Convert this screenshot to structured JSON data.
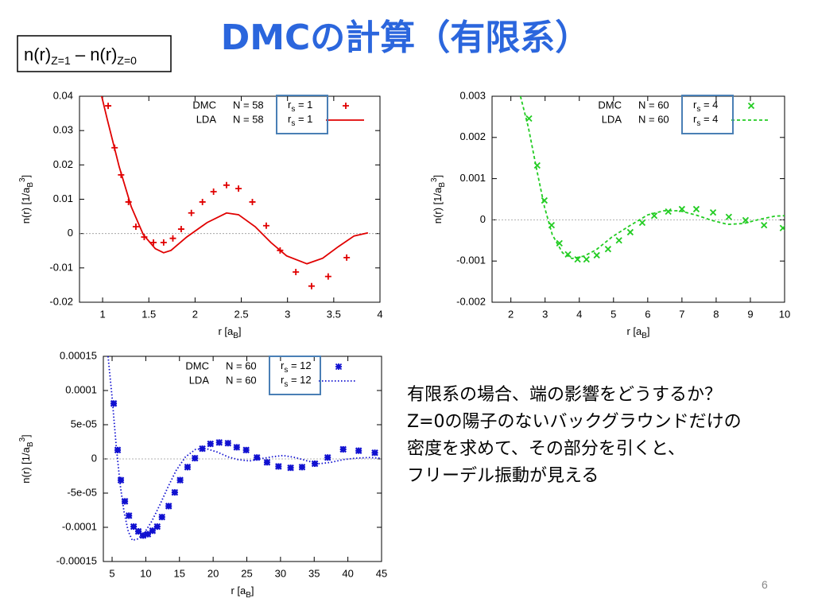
{
  "slide": {
    "title": "DMCの計算（有限系）",
    "box_label": {
      "a": "n(r)",
      "a_sub": "Z=1",
      "mid": " – n(r)",
      "b_sub": "Z=0"
    },
    "paragraph": [
      "有限系の場合、端の影響をどうするか？",
      "Z=0の陽子のないバックグラウンドだけの",
      "密度を求めて、その部分を引くと、",
      "フリーデル振動が見える"
    ],
    "page_number": "6"
  },
  "chart_data": [
    {
      "type": "scatter_line",
      "xlabel": {
        "text": "r  [a",
        "sub": "B",
        "end": "]"
      },
      "ylabel": {
        "text": "n(r)  [1/a",
        "sub": "B",
        "sup": "3",
        "end": "]"
      },
      "legend_symbol": {
        "base": "r",
        "sub": "s"
      },
      "xlim": [
        0.75,
        4
      ],
      "xticks": [
        1,
        1.5,
        2,
        2.5,
        3,
        3.5,
        4
      ],
      "ylim": [
        -0.02,
        0.04
      ],
      "yticks": [
        -0.02,
        -0.01,
        0,
        0.01,
        0.02,
        0.03,
        0.04
      ],
      "series": [
        {
          "name": "DMC",
          "size": "N = 58",
          "param": " = 1",
          "color": "#e00000",
          "marker": "plus",
          "x": [
            1.06,
            1.13,
            1.2,
            1.28,
            1.36,
            1.45,
            1.55,
            1.66,
            1.76,
            1.85,
            1.96,
            2.08,
            2.2,
            2.34,
            2.47,
            2.62,
            2.77,
            2.92,
            3.09,
            3.26,
            3.44,
            3.64
          ],
          "values": [
            0.0372,
            0.025,
            0.0171,
            0.0092,
            0.002,
            -0.001,
            -0.0026,
            -0.0026,
            -0.0014,
            0.0013,
            0.006,
            0.0092,
            0.0122,
            0.0141,
            0.0131,
            0.0092,
            0.0023,
            -0.0049,
            -0.0112,
            -0.0153,
            -0.0125,
            -0.007
          ]
        },
        {
          "name": "LDA",
          "size": "N = 58",
          "param": " = 1",
          "color": "#e00000",
          "line": "solid",
          "x": [
            0.99,
            1.05,
            1.18,
            1.31,
            1.44,
            1.57,
            1.66,
            1.74,
            1.91,
            2.13,
            2.34,
            2.47,
            2.65,
            2.82,
            2.99,
            3.21,
            3.38,
            3.55,
            3.72,
            3.87
          ],
          "values": [
            0.04,
            0.0333,
            0.0194,
            0.0078,
            -0.0003,
            -0.0044,
            -0.0056,
            -0.0049,
            -0.001,
            0.0032,
            0.006,
            0.0055,
            0.002,
            -0.0026,
            -0.0065,
            -0.0088,
            -0.0072,
            -0.0038,
            -0.0007,
            0.0002
          ]
        }
      ]
    },
    {
      "type": "scatter_line",
      "xlabel": {
        "text": "r  [a",
        "sub": "B",
        "end": "]"
      },
      "ylabel": {
        "text": "n(r)  [1/a",
        "sub": "B",
        "sup": "3",
        "end": "]"
      },
      "legend_symbol": {
        "base": "r",
        "sub": "s"
      },
      "xlim": [
        1.45,
        10
      ],
      "xticks": [
        2,
        3,
        4,
        5,
        6,
        7,
        8,
        9,
        10
      ],
      "ylim": [
        -0.002,
        0.003
      ],
      "yticks": [
        -0.002,
        -0.001,
        0,
        0.001,
        0.002,
        0.003
      ],
      "series": [
        {
          "name": "DMC",
          "size": "N = 60",
          "param": " = 4",
          "color": "#22cc22",
          "marker": "cross",
          "x": [
            2.53,
            2.77,
            2.98,
            3.19,
            3.42,
            3.67,
            3.95,
            4.21,
            4.51,
            4.84,
            5.16,
            5.49,
            5.84,
            6.19,
            6.6,
            7.0,
            7.42,
            7.91,
            8.37,
            8.86,
            9.4,
            9.95
          ],
          "values": [
            0.00246,
            0.00132,
            0.00047,
            -0.00013,
            -0.00057,
            -0.00084,
            -0.00096,
            -0.00096,
            -0.00086,
            -0.00071,
            -0.0005,
            -0.0003,
            -7e-05,
            0.0001,
            0.0002,
            0.00026,
            0.00026,
            0.00018,
            7e-05,
            -1e-05,
            -0.00013,
            -0.0002
          ]
        },
        {
          "name": "LDA",
          "size": "N = 60",
          "param": " = 4",
          "color": "#22cc22",
          "line": "dashed",
          "x": [
            2.28,
            2.51,
            2.74,
            2.98,
            3.21,
            3.51,
            3.79,
            4.14,
            4.49,
            4.95,
            5.42,
            6.0,
            6.47,
            6.93,
            7.4,
            7.86,
            8.33,
            8.79,
            9.26,
            9.72,
            10
          ],
          "values": [
            0.003,
            0.00225,
            0.00128,
            0.00032,
            -0.00036,
            -0.0008,
            -0.00094,
            -0.00088,
            -0.00073,
            -0.00042,
            -0.00017,
            0.00012,
            0.00022,
            0.00022,
            0.00012,
            -1e-05,
            -0.00011,
            -9e-05,
            1e-05,
            9e-05,
            0.0001
          ]
        }
      ]
    },
    {
      "type": "scatter_line",
      "xlabel": {
        "text": "r  [a",
        "sub": "B",
        "end": "]"
      },
      "ylabel": {
        "text": "n(r)  [1/a",
        "sub": "B",
        "sup": "3",
        "end": "]"
      },
      "legend_symbol": {
        "base": "r",
        "sub": "s"
      },
      "xlim": [
        3.7,
        45
      ],
      "xticks": [
        5,
        10,
        15,
        20,
        25,
        30,
        35,
        40,
        45
      ],
      "ylim": [
        -0.00015,
        0.00015
      ],
      "yticks": [
        -0.00015,
        -0.0001,
        {
          "value": -5e-05,
          "label": "-5e-05"
        },
        0,
        {
          "value": 5e-05,
          "label": "5e-05"
        },
        0.0001,
        0.00015
      ],
      "series": [
        {
          "name": "DMC",
          "size": "N = 60",
          "param": " = 12",
          "color": "#1010d0",
          "marker": "star",
          "x": [
            5.24,
            5.83,
            6.3,
            6.9,
            7.5,
            8.2,
            8.9,
            9.6,
            10.3,
            11.0,
            11.7,
            12.4,
            13.4,
            14.3,
            15.1,
            16.2,
            17.3,
            18.4,
            19.6,
            20.9,
            22.2,
            23.5,
            24.9,
            26.5,
            28.0,
            29.7,
            31.5,
            33.2,
            35.1,
            37.0,
            39.3,
            41.6,
            44.0
          ],
          "values": [
            8.1e-05,
            1.3e-05,
            -3.1e-05,
            -6.2e-05,
            -8.3e-05,
            -9.9e-05,
            -0.000106,
            -0.000112,
            -0.00011,
            -0.000105,
            -9.9e-05,
            -8.5e-05,
            -6.9e-05,
            -4.9e-05,
            -3.1e-05,
            -1.2e-05,
            1e-06,
            1.5e-05,
            2.2e-05,
            2.4e-05,
            2.3e-05,
            1.7e-05,
            1.3e-05,
            2e-06,
            -5e-06,
            -1.1e-05,
            -1.3e-05,
            -1.2e-05,
            -7e-06,
            2e-06,
            1.4e-05,
            1.2e-05,
            9e-06
          ]
        },
        {
          "name": "LDA",
          "size": "N = 60",
          "param": " = 12",
          "color": "#1010d0",
          "line": "dotted",
          "x": [
            4.4,
            5.0,
            5.6,
            6.2,
            6.8,
            7.4,
            8.0,
            8.8,
            9.8,
            10.9,
            12.1,
            13.3,
            14.5,
            15.9,
            17.4,
            19.0,
            20.6,
            22.2,
            23.7,
            25.4,
            26.9,
            28.7,
            30.4,
            32.2,
            34.0,
            35.8,
            37.5,
            39.3,
            41.1,
            43.1,
            45
          ],
          "values": [
            0.00015,
            9e-05,
            2e-05,
            -3.8e-05,
            -7.9e-05,
            -0.000106,
            -0.000119,
            -0.000117,
            -0.000108,
            -9.1e-05,
            -6.7e-05,
            -4.1e-05,
            -1.7e-05,
            3e-06,
            1.4e-05,
            1.5e-05,
            1e-05,
            3e-06,
            -1e-06,
            -3e-06,
            0,
            3e-06,
            5e-06,
            2e-06,
            -3e-06,
            -7e-06,
            -5e-06,
            -1e-06,
            1e-06,
            2e-06,
            1e-06
          ]
        }
      ]
    }
  ]
}
